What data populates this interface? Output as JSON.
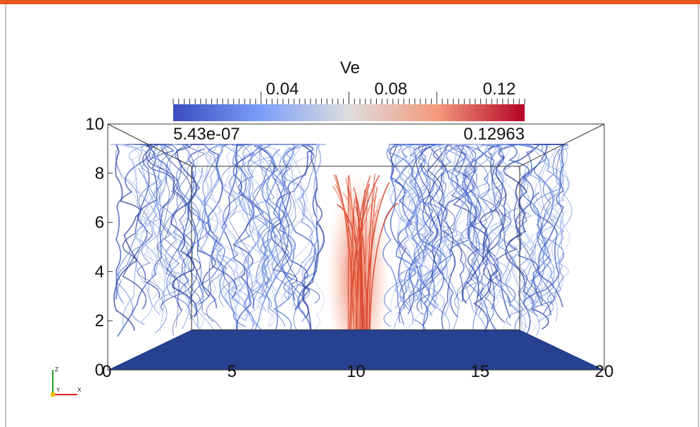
{
  "colorbar": {
    "title": "Ve",
    "ticks": [
      "0.04",
      "0.08",
      "0.12"
    ],
    "min_label": "5.43e-07",
    "max_label": "0.12963"
  },
  "axes": {
    "z_ticks": [
      "10",
      "8",
      "6",
      "4",
      "2",
      "0"
    ],
    "x_ticks": [
      "0",
      "5",
      "10",
      "15",
      "20"
    ]
  },
  "orientation": {
    "z": "Z",
    "y": "Y",
    "x": "X"
  }
}
